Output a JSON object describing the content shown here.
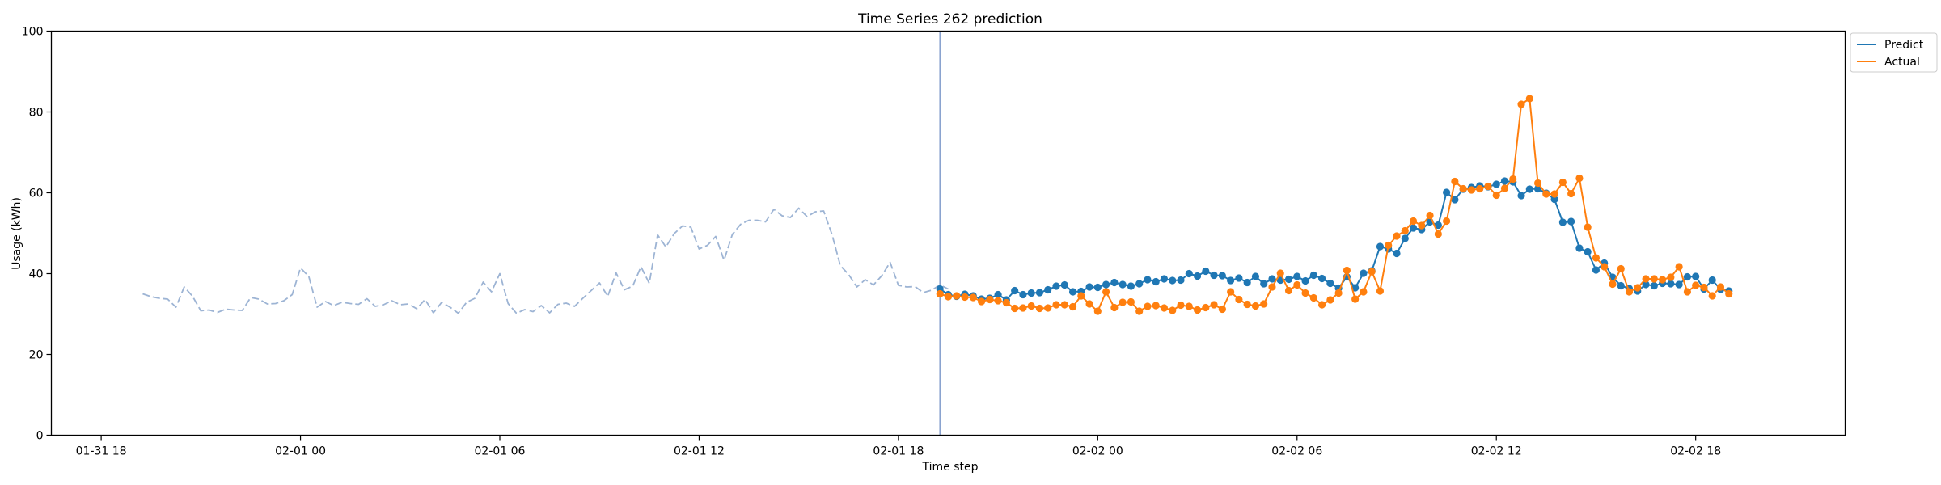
{
  "chart_data": {
    "type": "line",
    "title": "Time Series 262 prediction",
    "xlabel": "Time step",
    "ylabel": "Usage (kWh)",
    "ylim": [
      0,
      100
    ],
    "yticks": [
      0,
      20,
      40,
      60,
      80,
      100
    ],
    "xlim_hours": [
      -7.5,
      46.5
    ],
    "x_ticks": [
      {
        "label": "01-31 18",
        "hour": -6
      },
      {
        "label": "02-01 00",
        "hour": 0
      },
      {
        "label": "02-01 06",
        "hour": 6
      },
      {
        "label": "02-01 12",
        "hour": 12
      },
      {
        "label": "02-01 18",
        "hour": 18
      },
      {
        "label": "02-02 00",
        "hour": 24
      },
      {
        "label": "02-02 06",
        "hour": 30
      },
      {
        "label": "02-02 12",
        "hour": 36
      },
      {
        "label": "02-02 18",
        "hour": 42
      }
    ],
    "forecast_start_hour": 19.25,
    "legend_position": "top-right",
    "series": [
      {
        "name": "",
        "role": "history",
        "color": "#9db4d4",
        "style": "dashed",
        "start_hour": -4.75,
        "step_hours": 0.25,
        "values": [
          35.0,
          34.3,
          33.9,
          33.7,
          31.7,
          36.7,
          34.4,
          30.8,
          31.0,
          30.4,
          31.2,
          31.0,
          30.9,
          34.1,
          33.7,
          32.5,
          32.6,
          33.3,
          34.8,
          41.4,
          39.3,
          31.7,
          33.1,
          32.1,
          32.9,
          32.6,
          32.4,
          33.8,
          31.9,
          32.3,
          33.3,
          32.3,
          32.5,
          31.3,
          33.6,
          30.3,
          32.9,
          31.7,
          30.2,
          32.9,
          33.9,
          37.9,
          35.5,
          40.0,
          32.6,
          30.2,
          31.1,
          30.6,
          32.1,
          30.3,
          32.4,
          32.7,
          31.9,
          33.9,
          35.8,
          37.7,
          34.4,
          40.2,
          36.0,
          36.9,
          41.7,
          37.6,
          49.6,
          46.6,
          49.9,
          51.8,
          51.5,
          46.1,
          47.0,
          49.2,
          43.3,
          49.7,
          52.2,
          53.2,
          53.2,
          52.8,
          55.9,
          54.3,
          53.9,
          56.2,
          54.1,
          55.3,
          55.5,
          49.7,
          42.0,
          39.8,
          36.7,
          38.5,
          37.2,
          39.5,
          42.8,
          37.1,
          36.7,
          36.8,
          35.3,
          35.9,
          37.2,
          36.2
        ]
      },
      {
        "name": "Predict",
        "color": "#1f77b4",
        "start_hour": 19.25,
        "step_hours": 0.25,
        "values": [
          36.2,
          34.8,
          34.4,
          34.9,
          34.5,
          33.7,
          33.9,
          34.8,
          33.5,
          35.8,
          34.8,
          35.2,
          35.3,
          36.0,
          36.9,
          37.2,
          35.5,
          35.6,
          36.7,
          36.6,
          37.3,
          37.8,
          37.3,
          36.9,
          37.5,
          38.5,
          38.0,
          38.7,
          38.3,
          38.4,
          40.0,
          39.4,
          40.6,
          39.6,
          39.5,
          38.3,
          38.9,
          37.8,
          39.3,
          37.5,
          38.7,
          38.4,
          38.6,
          39.3,
          38.2,
          39.6,
          38.8,
          37.6,
          36.4,
          39.2,
          36.5,
          40.1,
          40.7,
          46.7,
          46.1,
          45.0,
          48.7,
          51.3,
          50.9,
          52.8,
          52.0,
          60.1,
          58.3,
          60.9,
          61.3,
          61.7,
          61.5,
          62.1,
          62.9,
          62.7,
          59.3,
          60.9,
          61.0,
          59.9,
          58.4,
          52.7,
          52.9,
          46.3,
          45.4,
          40.9,
          42.6,
          39.1,
          37.0,
          36.3,
          35.7,
          37.3,
          37.0,
          37.6,
          37.5,
          37.3,
          39.2,
          39.3,
          36.2,
          38.4,
          36.1,
          35.7
        ]
      },
      {
        "name": "Actual",
        "color": "#ff7f0e",
        "start_hour": 19.25,
        "step_hours": 0.25,
        "values": [
          35.0,
          34.3,
          34.5,
          34.2,
          34.1,
          33.1,
          33.6,
          33.3,
          32.8,
          31.4,
          31.5,
          32.0,
          31.4,
          31.5,
          32.3,
          32.3,
          31.8,
          34.5,
          32.5,
          30.7,
          35.5,
          31.6,
          32.9,
          33.0,
          30.7,
          31.9,
          32.1,
          31.5,
          30.9,
          32.2,
          31.9,
          31.0,
          31.6,
          32.3,
          31.2,
          35.5,
          33.6,
          32.4,
          32.0,
          32.5,
          36.7,
          40.1,
          35.8,
          37.2,
          35.2,
          34.0,
          32.3,
          33.5,
          35.2,
          40.8,
          33.7,
          35.5,
          40.5,
          35.7,
          47.0,
          49.3,
          50.6,
          53.0,
          51.9,
          54.4,
          49.8,
          53.0,
          62.8,
          61.0,
          60.7,
          61.0,
          61.6,
          59.4,
          61.1,
          63.4,
          81.9,
          83.3,
          62.4,
          59.7,
          59.7,
          62.6,
          59.8,
          63.6,
          51.5,
          43.9,
          41.7,
          37.4,
          41.2,
          35.5,
          36.5,
          38.7,
          38.7,
          38.5,
          39.1,
          41.7,
          35.5,
          37.1,
          36.6,
          34.5,
          36.7,
          35.0
        ]
      }
    ]
  }
}
